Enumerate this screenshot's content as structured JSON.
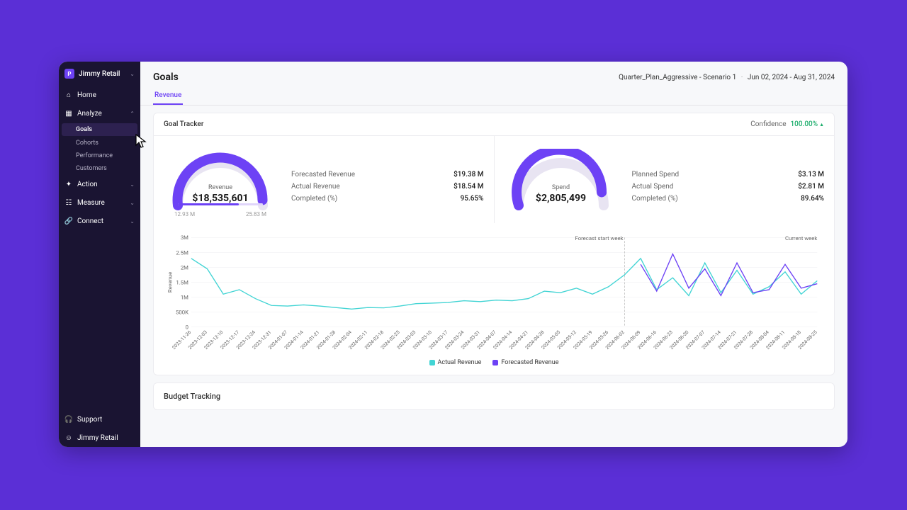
{
  "brand": {
    "name": "Jimmy Retail",
    "logo_letter": "P"
  },
  "nav": {
    "home": "Home",
    "analyze": "Analyze",
    "analyze_sub": [
      "Goals",
      "Cohorts",
      "Performance",
      "Customers"
    ],
    "action": "Action",
    "measure": "Measure",
    "connect": "Connect",
    "support": "Support",
    "user": "Jimmy Retail"
  },
  "page": {
    "title": "Goals",
    "scenario": "Quarter_Plan_Aggressive - Scenario 1",
    "date_range": "Jun 02, 2024 - Aug 31, 2024"
  },
  "tabs": {
    "revenue": "Revenue"
  },
  "tracker": {
    "title": "Goal Tracker",
    "confidence_label": "Confidence",
    "confidence_value": "100.00%"
  },
  "gauge_revenue": {
    "label": "Revenue",
    "value": "$18,535,601",
    "min": "12.93 M",
    "max": "25.83 M",
    "fill_pct": 0.96,
    "bar_fill_pct": 0.72,
    "metrics": [
      {
        "label": "Forecasted Revenue",
        "value": "$19.38 M"
      },
      {
        "label": "Actual Revenue",
        "value": "$18.54 M"
      },
      {
        "label": "Completed (%)",
        "value": "95.65%"
      }
    ]
  },
  "gauge_spend": {
    "label": "Spend",
    "value": "$2,805,499",
    "min": "",
    "max": "",
    "fill_pct": 0.9,
    "bar_fill_pct": 0,
    "metrics": [
      {
        "label": "Planned Spend",
        "value": "$3.13 M"
      },
      {
        "label": "Actual Spend",
        "value": "$2.81 M"
      },
      {
        "label": "Completed (%)",
        "value": "89.64%"
      }
    ]
  },
  "chart": {
    "ylabel": "Revenue",
    "yticks": [
      "3M",
      "2.5M",
      "2M",
      "1.5M",
      "1M",
      "500K",
      "0"
    ],
    "ymax": 3000000,
    "xticks": [
      "2023-11-26",
      "2023-12-03",
      "2023-12-10",
      "2023-12-17",
      "2023-12-24",
      "2023-12-31",
      "2024-01-07",
      "2024-01-14",
      "2024-01-21",
      "2024-01-28",
      "2024-02-04",
      "2024-02-11",
      "2024-02-18",
      "2024-02-25",
      "2024-03-03",
      "2024-03-10",
      "2024-03-17",
      "2024-03-24",
      "2024-03-31",
      "2024-04-07",
      "2024-04-14",
      "2024-04-21",
      "2024-04-28",
      "2024-05-05",
      "2024-05-12",
      "2024-05-19",
      "2024-05-26",
      "2024-06-02",
      "2024-06-09",
      "2024-06-16",
      "2024-06-23",
      "2024-06-30",
      "2024-07-07",
      "2024-07-14",
      "2024-07-21",
      "2024-07-28",
      "2024-08-04",
      "2024-08-11",
      "2024-08-18",
      "2024-08-25"
    ],
    "forecast_start_idx": 27,
    "forecast_label": "Forecast start week",
    "current_label": "Current week",
    "actual_values": [
      2300000,
      1950000,
      1100000,
      1250000,
      950000,
      720000,
      700000,
      740000,
      700000,
      650000,
      600000,
      650000,
      640000,
      700000,
      780000,
      800000,
      820000,
      880000,
      850000,
      900000,
      880000,
      950000,
      1200000,
      1150000,
      1300000,
      1100000,
      1350000,
      1750000,
      2300000,
      1250000,
      1650000,
      1050000,
      2150000,
      1150000,
      1900000,
      1100000,
      1350000,
      1850000,
      1100000,
      1550000
    ],
    "forecast_values": [
      null,
      null,
      null,
      null,
      null,
      null,
      null,
      null,
      null,
      null,
      null,
      null,
      null,
      null,
      null,
      null,
      null,
      null,
      null,
      null,
      null,
      null,
      null,
      null,
      null,
      null,
      null,
      null,
      2100000,
      1200000,
      2450000,
      1300000,
      1950000,
      1050000,
      2150000,
      1150000,
      1250000,
      2100000,
      1300000,
      1450000
    ],
    "actual_color": "#42d4d4",
    "forecast_color": "#6d42f5",
    "grid_color": "#ececf0",
    "legend_actual": "Actual Revenue",
    "legend_forecast": "Forecasted Revenue"
  },
  "budget": {
    "title": "Budget Tracking"
  },
  "colors": {
    "accent": "#6d42f5",
    "gauge_track": "#e8e4f2",
    "green": "#1eae6d"
  }
}
